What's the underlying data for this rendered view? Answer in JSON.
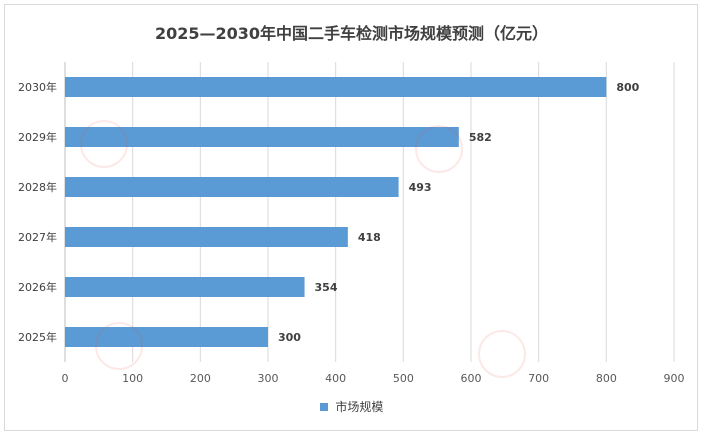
{
  "chart_data": {
    "type": "bar",
    "orientation": "horizontal",
    "title": "2025—2030年中国二手车检测市场规模预测（亿元）",
    "categories": [
      "2025年",
      "2026年",
      "2027年",
      "2028年",
      "2029年",
      "2030年"
    ],
    "series": [
      {
        "name": "市场规模",
        "values": [
          300,
          354,
          418,
          493,
          582,
          800
        ],
        "color": "#5b9bd5"
      }
    ],
    "xlim": [
      0,
      900
    ],
    "x_ticks": [
      0,
      100,
      200,
      300,
      400,
      500,
      600,
      700,
      800,
      900
    ],
    "grid": "vertical",
    "legend_position": "bottom"
  }
}
